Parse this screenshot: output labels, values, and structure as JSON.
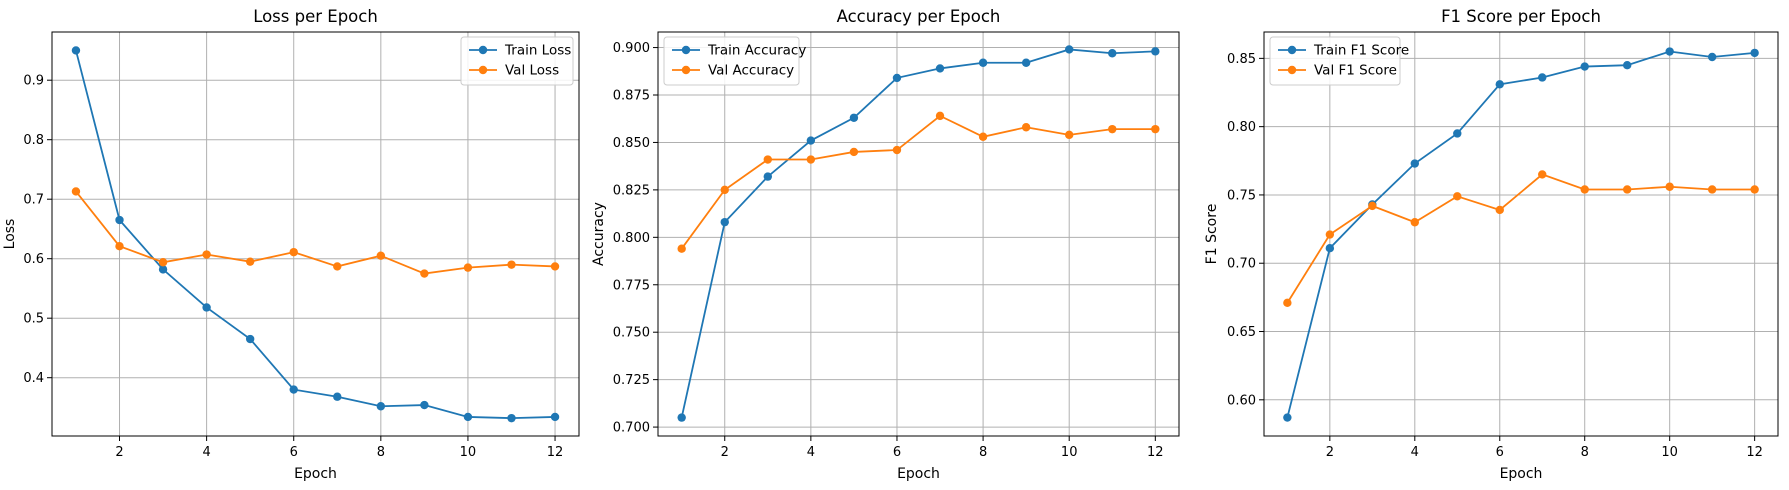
{
  "colors": {
    "train": "#1f77b4",
    "val": "#ff7f0e",
    "grid": "#b0b0b0",
    "axis": "#000000"
  },
  "chart_data": [
    {
      "type": "line",
      "title": "Loss per Epoch",
      "xlabel": "Epoch",
      "ylabel": "Loss",
      "x": [
        1,
        2,
        3,
        4,
        5,
        6,
        7,
        8,
        9,
        10,
        11,
        12
      ],
      "xlim": [
        0.45,
        12.55
      ],
      "ylim": [
        0.302,
        0.981
      ],
      "xticks": [
        2,
        4,
        6,
        8,
        10,
        12
      ],
      "yticks": [
        0.4,
        0.5,
        0.6,
        0.7,
        0.8,
        0.9
      ],
      "ytick_decimals": 1,
      "grid": true,
      "legend_loc": "upper-right",
      "series": [
        {
          "name": "Train Loss",
          "color": "#1f77b4",
          "values": [
            0.95,
            0.665,
            0.582,
            0.518,
            0.465,
            0.38,
            0.368,
            0.352,
            0.354,
            0.334,
            0.332,
            0.334
          ]
        },
        {
          "name": "Val Loss",
          "color": "#ff7f0e",
          "values": [
            0.713,
            0.621,
            0.594,
            0.607,
            0.595,
            0.611,
            0.587,
            0.605,
            0.575,
            0.585,
            0.59,
            0.587
          ]
        }
      ]
    },
    {
      "type": "line",
      "title": "Accuracy per Epoch",
      "xlabel": "Epoch",
      "ylabel": "Accuracy",
      "x": [
        1,
        2,
        3,
        4,
        5,
        6,
        7,
        8,
        9,
        10,
        11,
        12
      ],
      "xlim": [
        0.45,
        12.55
      ],
      "ylim": [
        0.6953,
        0.9082
      ],
      "xticks": [
        2,
        4,
        6,
        8,
        10,
        12
      ],
      "yticks": [
        0.7,
        0.725,
        0.75,
        0.775,
        0.8,
        0.825,
        0.85,
        0.875,
        0.9
      ],
      "ytick_decimals": 3,
      "grid": true,
      "legend_loc": "upper-left",
      "series": [
        {
          "name": "Train Accuracy",
          "color": "#1f77b4",
          "values": [
            0.705,
            0.808,
            0.832,
            0.851,
            0.863,
            0.884,
            0.889,
            0.892,
            0.892,
            0.899,
            0.897,
            0.898
          ]
        },
        {
          "name": "Val Accuracy",
          "color": "#ff7f0e",
          "values": [
            0.794,
            0.825,
            0.841,
            0.841,
            0.845,
            0.846,
            0.864,
            0.853,
            0.858,
            0.854,
            0.857,
            0.857
          ]
        }
      ]
    },
    {
      "type": "line",
      "title": "F1 Score per Epoch",
      "xlabel": "Epoch",
      "ylabel": "F1 Score",
      "x": [
        1,
        2,
        3,
        4,
        5,
        6,
        7,
        8,
        9,
        10,
        11,
        12
      ],
      "xlim": [
        0.45,
        12.55
      ],
      "ylim": [
        0.5735,
        0.8693
      ],
      "xticks": [
        2,
        4,
        6,
        8,
        10,
        12
      ],
      "yticks": [
        0.6,
        0.65,
        0.7,
        0.75,
        0.8,
        0.85
      ],
      "ytick_decimals": 2,
      "grid": true,
      "legend_loc": "upper-left",
      "series": [
        {
          "name": "Train F1 Score",
          "color": "#1f77b4",
          "values": [
            0.587,
            0.711,
            0.743,
            0.773,
            0.795,
            0.831,
            0.836,
            0.844,
            0.845,
            0.855,
            0.851,
            0.854
          ]
        },
        {
          "name": "Val F1 Score",
          "color": "#ff7f0e",
          "values": [
            0.671,
            0.721,
            0.742,
            0.73,
            0.749,
            0.739,
            0.765,
            0.754,
            0.754,
            0.756,
            0.754,
            0.754
          ]
        }
      ]
    }
  ]
}
